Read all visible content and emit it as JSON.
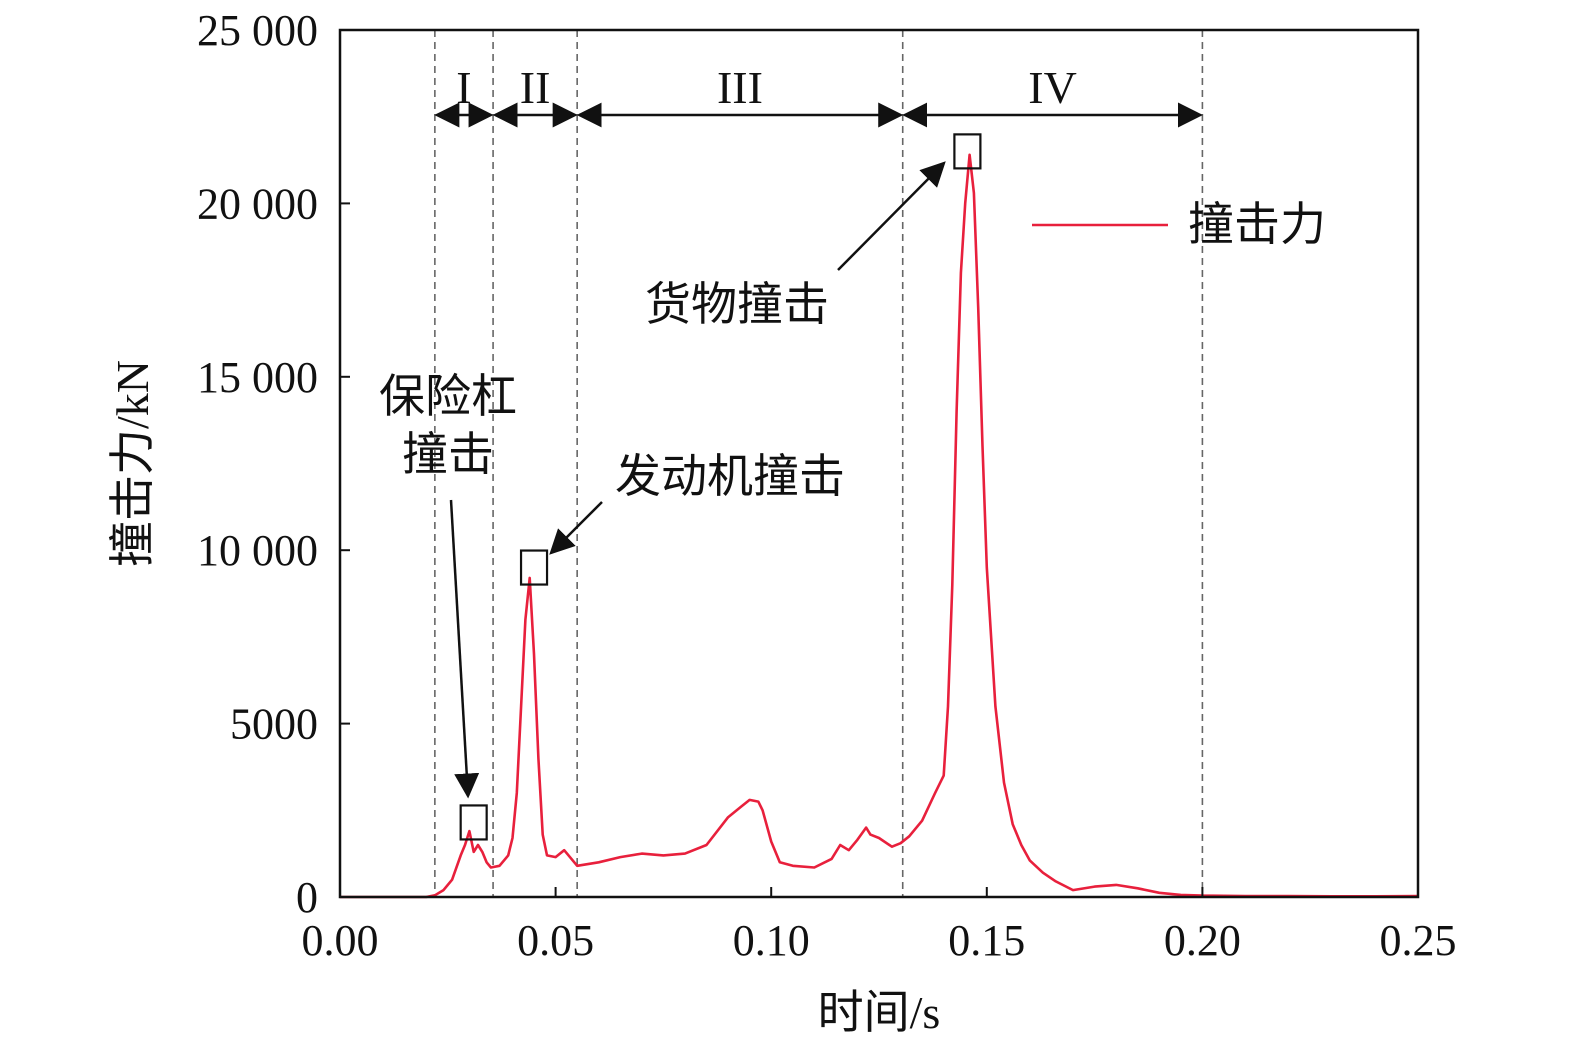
{
  "chart_data": {
    "type": "line",
    "xlabel": "时间/s",
    "ylabel": "撞击力/kN",
    "xlim": [
      0,
      0.25
    ],
    "ylim": [
      0,
      25000
    ],
    "xticks": [
      0,
      0.05,
      0.1,
      0.15,
      0.2,
      0.25
    ],
    "xtick_labels": [
      "0.00",
      "0.05",
      "0.10",
      "0.15",
      "0.20",
      "0.25"
    ],
    "yticks": [
      0,
      5000,
      10000,
      15000,
      20000,
      25000
    ],
    "ytick_labels": [
      "0",
      "5000",
      "10 000",
      "15 000",
      "20 000",
      "25 000"
    ],
    "grid": false,
    "legend_position": "upper-right",
    "series": [
      {
        "name": "撞击力",
        "color": "#e8203c",
        "x": [
          0.0,
          0.02,
          0.022,
          0.024,
          0.026,
          0.028,
          0.029,
          0.03,
          0.031,
          0.032,
          0.033,
          0.034,
          0.035,
          0.037,
          0.039,
          0.04,
          0.041,
          0.042,
          0.043,
          0.044,
          0.045,
          0.046,
          0.047,
          0.048,
          0.05,
          0.052,
          0.055,
          0.06,
          0.065,
          0.07,
          0.075,
          0.08,
          0.085,
          0.09,
          0.093,
          0.095,
          0.097,
          0.098,
          0.1,
          0.102,
          0.105,
          0.11,
          0.114,
          0.116,
          0.118,
          0.12,
          0.122,
          0.123,
          0.125,
          0.128,
          0.13,
          0.132,
          0.135,
          0.138,
          0.14,
          0.141,
          0.142,
          0.143,
          0.144,
          0.145,
          0.146,
          0.147,
          0.148,
          0.149,
          0.15,
          0.152,
          0.154,
          0.156,
          0.158,
          0.16,
          0.163,
          0.166,
          0.17,
          0.175,
          0.18,
          0.185,
          0.19,
          0.195,
          0.2,
          0.21,
          0.22,
          0.23,
          0.24,
          0.25
        ],
        "values": [
          0,
          0,
          50,
          200,
          500,
          1200,
          1500,
          1900,
          1300,
          1500,
          1300,
          1000,
          850,
          900,
          1200,
          1700,
          3000,
          5500,
          8000,
          9200,
          7000,
          4000,
          1800,
          1200,
          1150,
          1350,
          900,
          1000,
          1150,
          1250,
          1200,
          1250,
          1500,
          2300,
          2600,
          2800,
          2750,
          2500,
          1600,
          1000,
          900,
          850,
          1100,
          1500,
          1350,
          1650,
          2000,
          1800,
          1700,
          1450,
          1550,
          1750,
          2200,
          3000,
          3500,
          5500,
          9000,
          14000,
          18000,
          20000,
          21400,
          20300,
          17000,
          13000,
          9500,
          5500,
          3300,
          2100,
          1500,
          1050,
          700,
          450,
          200,
          300,
          350,
          250,
          120,
          60,
          40,
          30,
          30,
          20,
          20,
          30
        ]
      }
    ],
    "regions": [
      {
        "label": "I",
        "x0": 0.022,
        "x1": 0.0355
      },
      {
        "label": "II",
        "x0": 0.0355,
        "x1": 0.055
      },
      {
        "label": "III",
        "x0": 0.055,
        "x1": 0.1305
      },
      {
        "label": "IV",
        "x0": 0.1305,
        "x1": 0.2
      }
    ],
    "annotations": [
      {
        "lines": [
          "保险杠",
          "撞击"
        ],
        "point": [
          0.031,
          2150
        ]
      },
      {
        "lines": [
          "发动机撞击"
        ],
        "point": [
          0.045,
          9500
        ]
      },
      {
        "lines": [
          "货物撞击"
        ],
        "point": [
          0.1455,
          21500
        ]
      }
    ]
  }
}
